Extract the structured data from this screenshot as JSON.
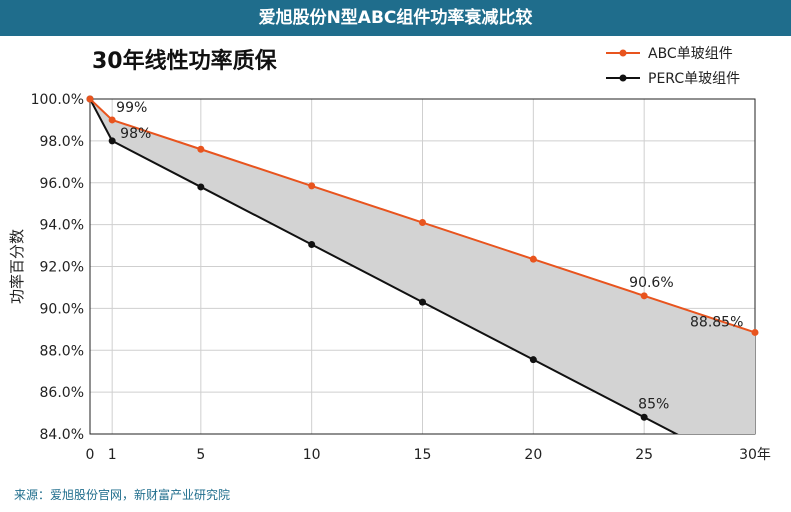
{
  "banner": {
    "title": "爱旭股份N型ABC组件功率衰减比较"
  },
  "footer": {
    "source": "来源：爱旭股份官网，新财富产业研究院"
  },
  "chart_data": {
    "type": "area",
    "title": "30年线性功率质保",
    "ylabel": "功率百分数",
    "xlabel": "",
    "x_ticks": [
      "0",
      "1",
      "5",
      "10",
      "15",
      "20",
      "25",
      "30年"
    ],
    "y_ticks": [
      "84.0%",
      "86.0%",
      "88.0%",
      "90.0%",
      "92.0%",
      "94.0%",
      "96.0%",
      "98.0%",
      "100.0%"
    ],
    "xlim": [
      0,
      30
    ],
    "ylim": [
      84,
      100
    ],
    "grid": true,
    "legend_position": "top-right",
    "series": [
      {
        "name": "ABC单玻组件",
        "color": "#e8541e",
        "x": [
          0,
          1,
          5,
          10,
          15,
          20,
          25,
          30
        ],
        "y": [
          100,
          99,
          97.6,
          95.85,
          94.1,
          92.35,
          90.6,
          88.85
        ]
      },
      {
        "name": "PERC单玻组件",
        "color": "#111111",
        "x": [
          0,
          1,
          5,
          10,
          15,
          20,
          25
        ],
        "y": [
          100,
          98,
          95.8,
          93.05,
          90.3,
          87.55,
          84.8
        ]
      }
    ],
    "fill_between_color": "#d3d3d3",
    "annotations": [
      {
        "text": "99%",
        "series": 0,
        "x": 1
      },
      {
        "text": "98%",
        "series": 1,
        "x": 1
      },
      {
        "text": "90.6%",
        "series": 0,
        "x": 25
      },
      {
        "text": "88.85%",
        "series": 0,
        "x": 30
      },
      {
        "text": "85%",
        "series": 1,
        "x": 25
      }
    ]
  }
}
